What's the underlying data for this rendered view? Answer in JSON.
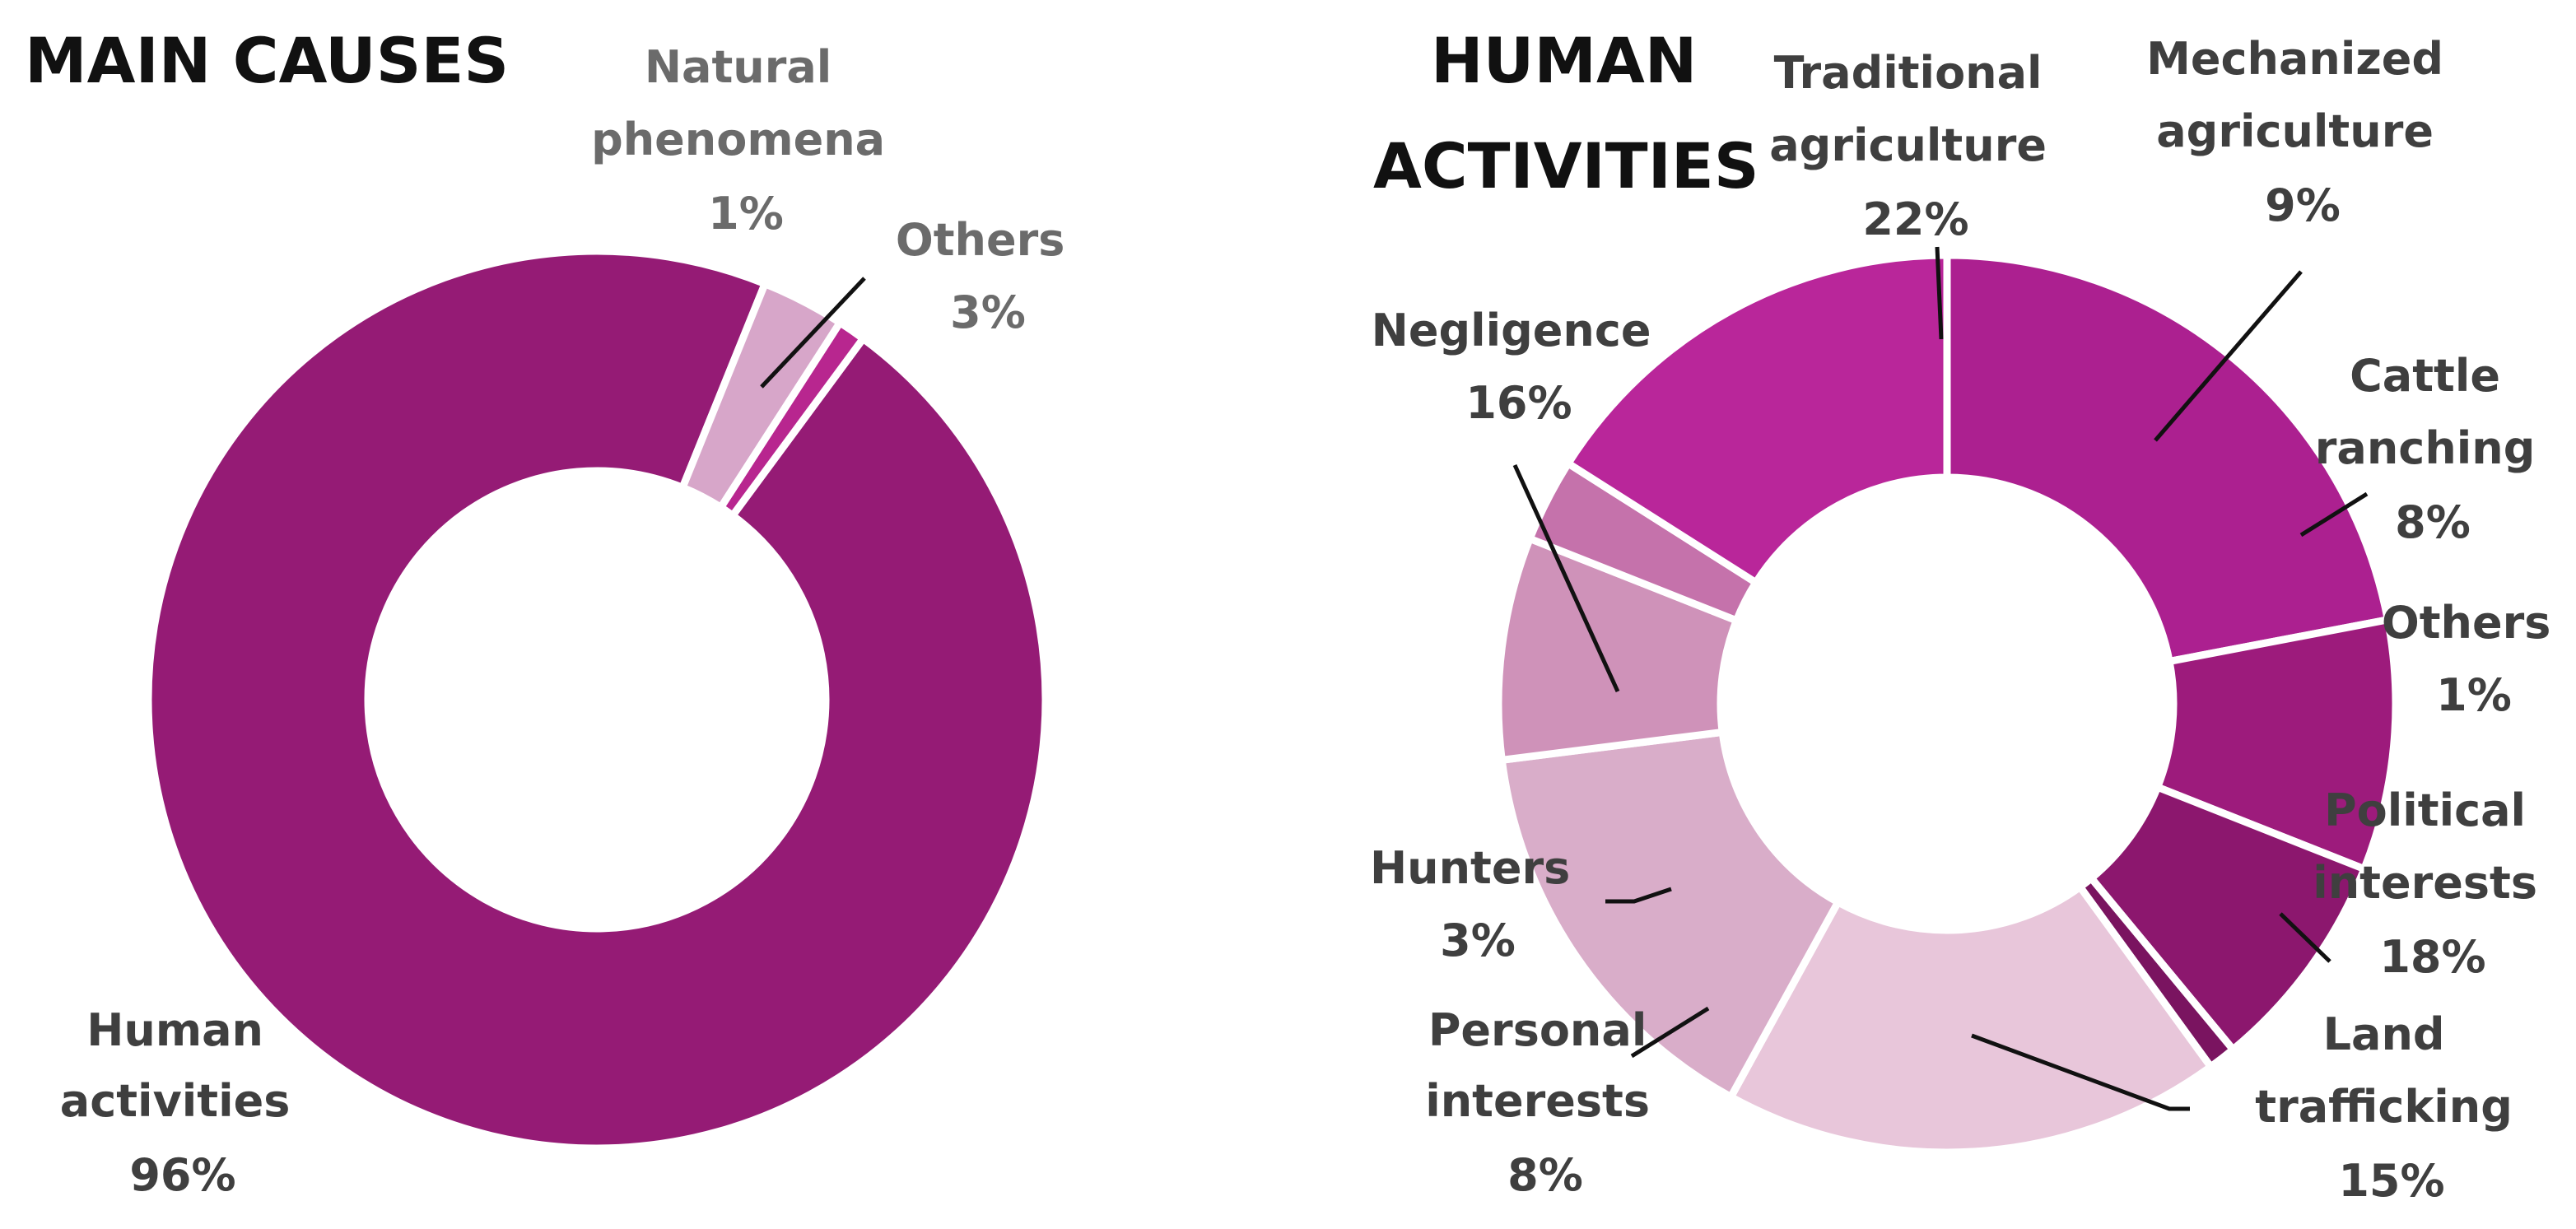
{
  "chart_data": [
    {
      "type": "pie",
      "title": "MAIN CAUSES",
      "series": [
        {
          "name": "Human activities",
          "label_lines": [
            "Human",
            "activities"
          ],
          "pct": "96%",
          "value": 96,
          "color": "#951b75"
        },
        {
          "name": "Natural phenomena",
          "label_lines": [
            "Natural",
            "phenomena"
          ],
          "pct": "1%",
          "value": 1,
          "color": "#b8268f"
        },
        {
          "name": "Others",
          "label_lines": [
            "Others"
          ],
          "pct": "3%",
          "value": 3,
          "color": "#d7a6c9"
        }
      ]
    },
    {
      "type": "pie",
      "title": "HUMAN ACTIVITIES",
      "title_lines": [
        "HUMAN",
        "ACTIVITIES"
      ],
      "series": [
        {
          "name": "Traditional agriculture",
          "label_lines": [
            "Traditional",
            "agriculture"
          ],
          "pct": "22%",
          "value": 22,
          "color": "#ac2090"
        },
        {
          "name": "Mechanized agriculture",
          "label_lines": [
            "Mechanized",
            "agriculture"
          ],
          "pct": "9%",
          "value": 9,
          "color": "#9d1b7c"
        },
        {
          "name": "Cattle ranching",
          "label_lines": [
            "Cattle",
            "ranching"
          ],
          "pct": "8%",
          "value": 8,
          "color": "#8c176e"
        },
        {
          "name": "Others",
          "label_lines": [
            "Others"
          ],
          "pct": "1%",
          "value": 1,
          "color": "#7a1460"
        },
        {
          "name": "Political interests",
          "label_lines": [
            "Political",
            "interests"
          ],
          "pct": "18%",
          "value": 18,
          "color": "#e8c6da"
        },
        {
          "name": "Land trafficking",
          "label_lines": [
            "Land",
            "trafficking"
          ],
          "pct": "15%",
          "value": 15,
          "color": "#d9adc9"
        },
        {
          "name": "Personal interests",
          "label_lines": [
            "Personal",
            "interests"
          ],
          "pct": "8%",
          "value": 8,
          "color": "#cf92b9"
        },
        {
          "name": "Hunters",
          "label_lines": [
            "Hunters"
          ],
          "pct": "3%",
          "value": 3,
          "color": "#c572ab"
        },
        {
          "name": "Negligence",
          "label_lines": [
            "Negligence"
          ],
          "pct": "16%",
          "value": 16,
          "color": "#b9269a"
        }
      ]
    }
  ]
}
